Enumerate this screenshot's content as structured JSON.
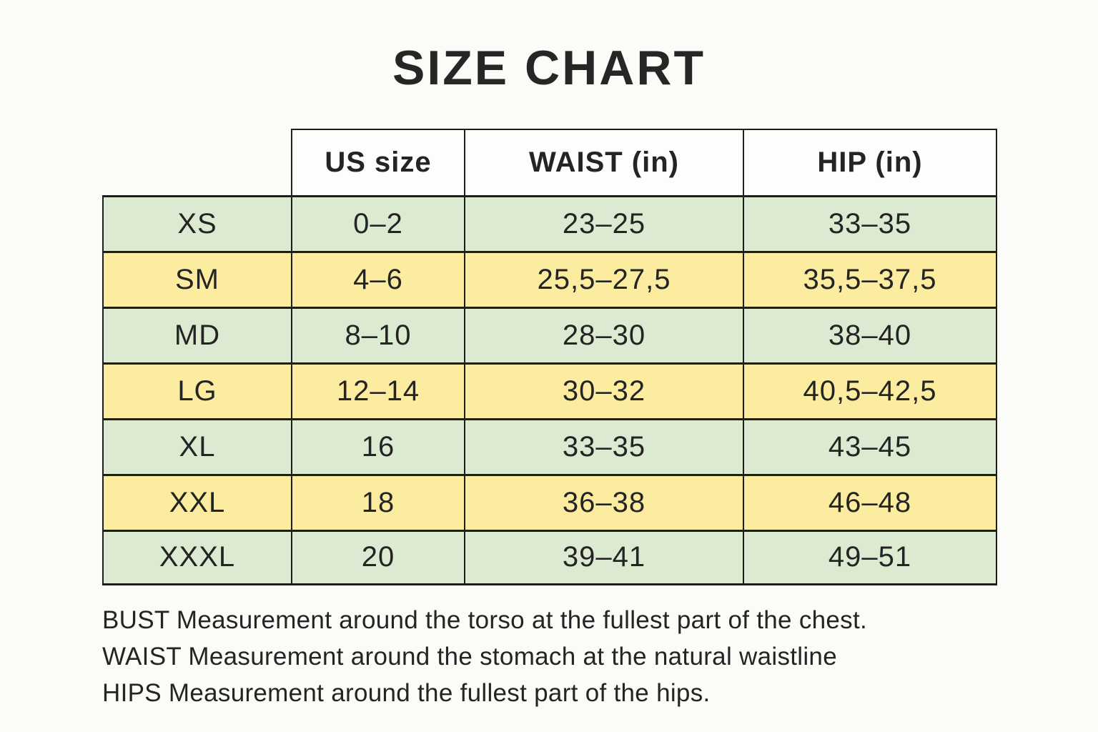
{
  "title": "SIZE CHART",
  "table": {
    "header": {
      "us": "US size",
      "waist": "WAIST (in)",
      "hip": "HIP (in)"
    },
    "rows": [
      {
        "size": "XS",
        "us": "0–2",
        "waist": "23–25",
        "hip": "33–35"
      },
      {
        "size": "SM",
        "us": "4–6",
        "waist": "25,5–27,5",
        "hip": "35,5–37,5"
      },
      {
        "size": "MD",
        "us": "8–10",
        "waist": "28–30",
        "hip": "38–40"
      },
      {
        "size": "LG",
        "us": "12–14",
        "waist": "30–32",
        "hip": "40,5–42,5"
      },
      {
        "size": "XL",
        "us": "16",
        "waist": "33–35",
        "hip": "43–45"
      },
      {
        "size": "XXL",
        "us": "18",
        "waist": "36–38",
        "hip": "46–48"
      },
      {
        "size": "XXXL",
        "us": "20",
        "waist": "39–41",
        "hip": "49–51"
      }
    ]
  },
  "notes": [
    "BUST Measurement around the torso at the fullest part of the chest.",
    "WAIST Measurement around the stomach at the natural waistline",
    "HIPS Measurement around the fullest part of the hips."
  ],
  "colors": {
    "row_green": "#dcead2",
    "row_yellow": "#fbec9f",
    "border": "#1d1d1b",
    "background": "#fbfbf8",
    "text": "#242424"
  }
}
